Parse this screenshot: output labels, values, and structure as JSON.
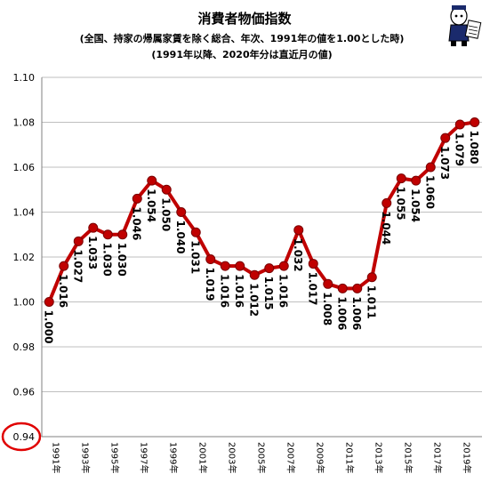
{
  "chart_data": {
    "type": "line",
    "title": "消費者物価指数",
    "subtitle": "(全国、持家の帰属家賃を除く総合、年次、1991年の値を1.00とした時)",
    "subtitle2": "(1991年以降、2020年分は直近月の値)",
    "xlabel": "",
    "ylabel": "",
    "ylim": [
      0.94,
      1.1
    ],
    "y_ticks": [
      "0.94",
      "0.96",
      "0.98",
      "1.00",
      "1.02",
      "1.04",
      "1.06",
      "1.08",
      "1.10"
    ],
    "x": [
      "1991年",
      "1992年",
      "1993年",
      "1994年",
      "1995年",
      "1996年",
      "1997年",
      "1998年",
      "1999年",
      "2000年",
      "2001年",
      "2002年",
      "2003年",
      "2004年",
      "2005年",
      "2006年",
      "2007年",
      "2008年",
      "2009年",
      "2010年",
      "2011年",
      "2012年",
      "2013年",
      "2014年",
      "2015年",
      "2016年",
      "2017年",
      "2018年",
      "2019年",
      "2020年"
    ],
    "x_tick_labels": [
      "1991年",
      "1993年",
      "1995年",
      "1997年",
      "1999年",
      "2001年",
      "2003年",
      "2005年",
      "2007年",
      "2009年",
      "2011年",
      "2013年",
      "2015年",
      "2017年",
      "2019年"
    ],
    "values": [
      1.0,
      1.016,
      1.027,
      1.033,
      1.03,
      1.03,
      1.046,
      1.054,
      1.05,
      1.04,
      1.031,
      1.019,
      1.016,
      1.016,
      1.012,
      1.015,
      1.016,
      1.032,
      1.017,
      1.008,
      1.006,
      1.006,
      1.011,
      1.044,
      1.055,
      1.054,
      1.06,
      1.073,
      1.079,
      1.08
    ],
    "data_labels": [
      "1.000",
      "1.016",
      "1.027",
      "1.033",
      "1.030",
      "1.030",
      "1.046",
      "1.054",
      "1.050",
      "1.040",
      "1.031",
      "1.019",
      "1.016",
      "1.016",
      "1.012",
      "1.015",
      "1.016",
      "1.032",
      "1.017",
      "1.008",
      "1.006",
      "1.006",
      "1.011",
      "1.044",
      "1.055",
      "1.054",
      "1.060",
      "1.073",
      "1.079",
      "1.080"
    ],
    "grid": true,
    "legend": "none",
    "line_color": "#c00000",
    "highlight_tick": "0.94",
    "highlight_color": "#e00000"
  },
  "mascot": {
    "icon": "mascot-illustration-icon"
  }
}
